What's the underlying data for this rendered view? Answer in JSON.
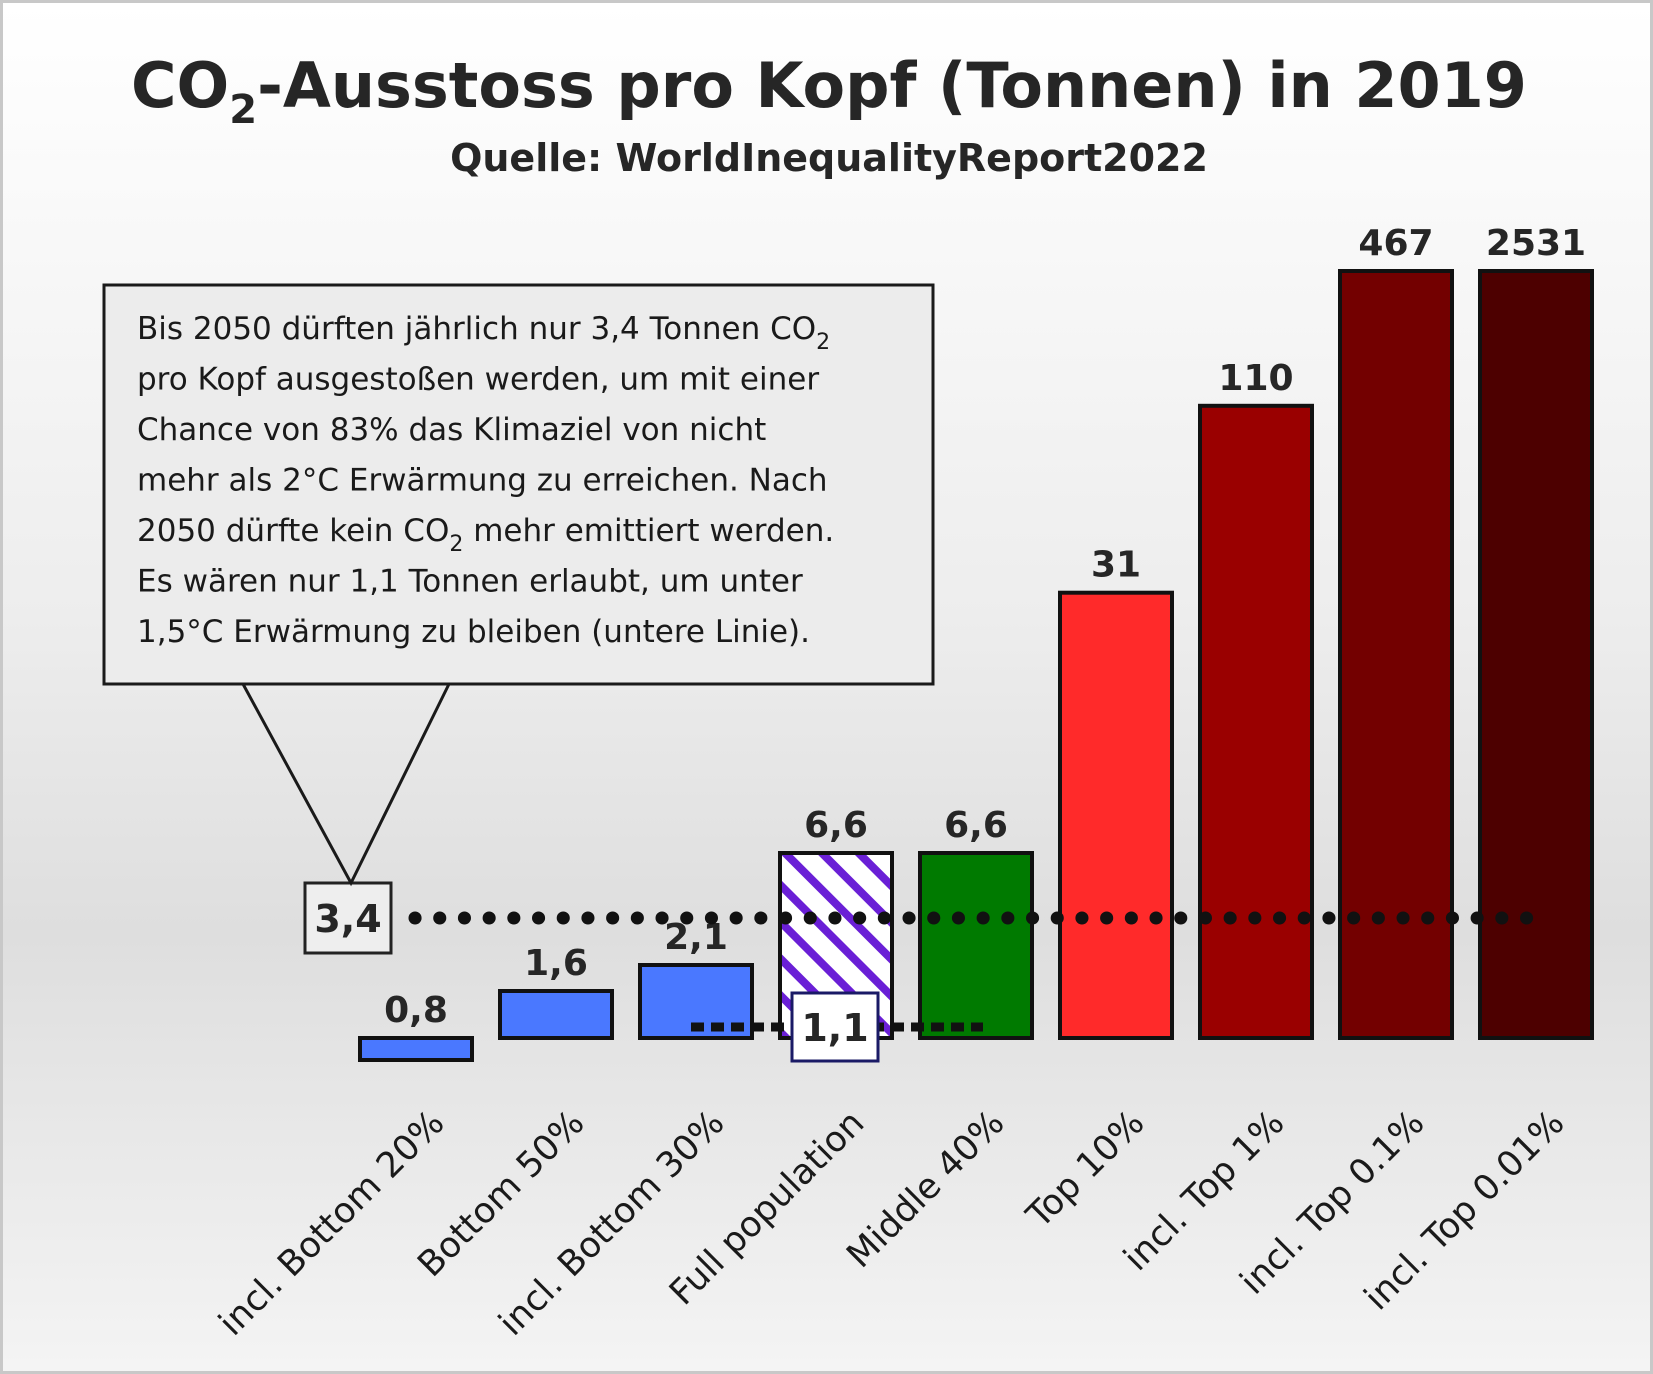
{
  "chart_data": {
    "type": "bar",
    "title": "CO2-Ausstoss pro Kopf (Tonnen) in 2019",
    "title_parts": {
      "pre": "CO",
      "sub": "2",
      "post": "-Ausstoss pro Kopf (Tonnen) in 2019"
    },
    "subtitle": "Quelle: WorldInequalityReport2022",
    "categories": [
      "incl. Bottom 20%",
      "Bottom 50%",
      "incl. Bottom 30%",
      "Full population",
      "Middle 40%",
      "Top 10%",
      "incl. Top 1%",
      "incl. Top 0.1%",
      "incl. Top 0.01%"
    ],
    "values": [
      0.8,
      1.6,
      2.1,
      6.6,
      6.6,
      31,
      110,
      467,
      2531
    ],
    "value_labels": [
      "0,8",
      "1,6",
      "2,1",
      "6,6",
      "6,6",
      "31",
      "110",
      "467",
      "2531"
    ],
    "colors": [
      "#4a78ff",
      "#4a78ff",
      "#4a78ff",
      "hatched-purple",
      "#007a00",
      "#ff2a2a",
      "#9a0000",
      "#730000",
      "#4d0000"
    ],
    "scale": "nonlinear",
    "reference_lines": [
      {
        "value": 3.4,
        "label": "3,4",
        "style": "dotted"
      },
      {
        "value": 1.1,
        "label": "1,1",
        "style": "dotted"
      }
    ],
    "annotation": {
      "lines": [
        {
          "pre": "Bis 2050 dürften jährlich nur 3,4 Tonnen CO",
          "sub": "2",
          "post": ""
        },
        {
          "pre": "pro Kopf ausgestoßen werden, um mit einer",
          "sub": "",
          "post": ""
        },
        {
          "pre": "Chance von 83% das Klimaziel von nicht",
          "sub": "",
          "post": ""
        },
        {
          "pre": "mehr als 2°C Erwärmung zu erreichen. Nach",
          "sub": "",
          "post": ""
        },
        {
          "pre": "2050 dürfte kein CO",
          "sub": "2",
          "post": " mehr emittiert werden."
        },
        {
          "pre": "Es wären nur 1,1 Tonnen erlaubt, um unter",
          "sub": "",
          "post": ""
        },
        {
          "pre": "1,5°C Erwärmung zu bleiben (untere Linie).",
          "sub": "",
          "post": ""
        }
      ]
    },
    "grid": false,
    "legend": "none"
  }
}
